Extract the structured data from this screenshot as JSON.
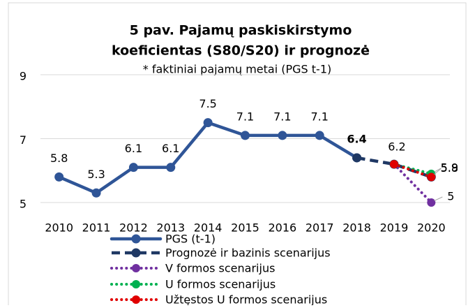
{
  "chart_data": {
    "type": "line",
    "title": [
      "5 pav. Pajamų paskiskirstymo",
      "koeficientas (S80/S20) ir prognozė"
    ],
    "subtitle": "* faktiniai pajamų metai (PGS t-1)",
    "categories": [
      "2010",
      "2011",
      "2012",
      "2013",
      "2014",
      "2015",
      "2016",
      "2017",
      "2018",
      "2019",
      "2020"
    ],
    "ylim": [
      5,
      9
    ],
    "yticks": [
      5,
      7,
      9
    ],
    "grid": true,
    "legend": "bottom",
    "series": [
      {
        "name": "PGS (t-1)",
        "color": "#2f5597",
        "style": "solid",
        "values": [
          5.8,
          5.3,
          6.1,
          6.1,
          7.5,
          7.1,
          7.1,
          7.1,
          6.4,
          null,
          null
        ],
        "value_labels": [
          "5.8",
          "5.3",
          "6.1",
          "6.1",
          "7.5",
          "7.1",
          "7.1",
          "7.1",
          "6.4",
          null,
          null
        ]
      },
      {
        "name": "Prognozė ir bazinis scenarijus",
        "color": "#1f3864",
        "style": "dashed",
        "values": [
          null,
          null,
          null,
          null,
          null,
          null,
          null,
          null,
          6.4,
          6.2,
          5.8
        ],
        "value_labels": [
          null,
          null,
          null,
          null,
          null,
          null,
          null,
          null,
          null,
          "6.2",
          null
        ]
      },
      {
        "name": "V formos scenarijus",
        "color": "#7030a0",
        "style": "dotted",
        "values": [
          null,
          null,
          null,
          null,
          null,
          null,
          null,
          null,
          null,
          6.2,
          5
        ],
        "value_labels": [
          null,
          null,
          null,
          null,
          null,
          null,
          null,
          null,
          null,
          null,
          "5"
        ]
      },
      {
        "name": "U formos scenarijus",
        "color": "#00b050",
        "style": "dotted",
        "values": [
          null,
          null,
          null,
          null,
          null,
          null,
          null,
          null,
          null,
          6.2,
          5.9
        ],
        "value_labels": [
          null,
          null,
          null,
          null,
          null,
          null,
          null,
          null,
          null,
          null,
          "5.9"
        ]
      },
      {
        "name": "Užtęstos U formos scenarijus",
        "color": "#e00000",
        "style": "dotted",
        "values": [
          null,
          null,
          null,
          null,
          null,
          null,
          null,
          null,
          null,
          6.2,
          5.8
        ],
        "value_labels": [
          null,
          null,
          null,
          null,
          null,
          null,
          null,
          null,
          null,
          null,
          "5.8"
        ]
      }
    ]
  }
}
